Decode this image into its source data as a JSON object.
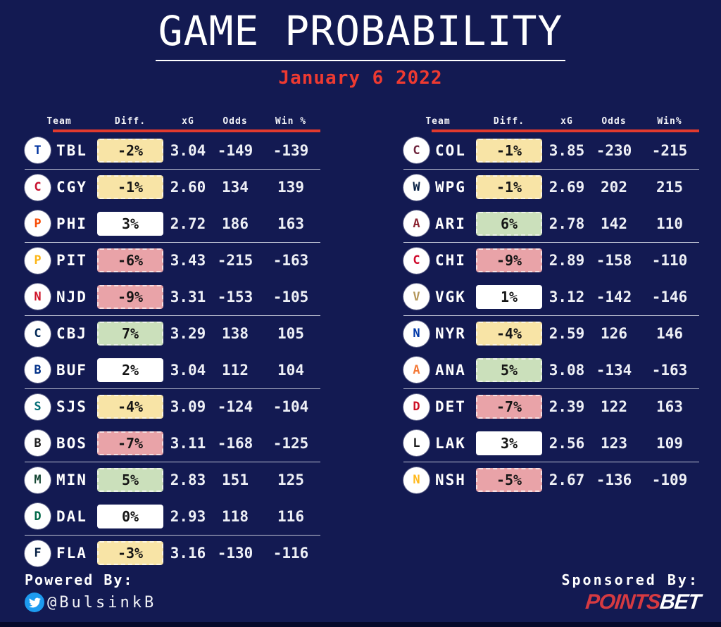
{
  "title": "GAME PROBABILITY",
  "subtitle_date": "January 6 2022",
  "colors": {
    "background": "#131a52",
    "accent_red": "#e23a2e",
    "subtitle_red": "#ee3a31",
    "badge_yellow": "#f8e4a6",
    "badge_green": "#cbe0bb",
    "badge_pink": "#e9a3a8",
    "badge_white": "#ffffff",
    "separator_gray": "#dee2eb",
    "twitter_blue": "#1d9bf0",
    "pointsbet_red": "#d63a41"
  },
  "chart_data": [
    {
      "type": "table",
      "title": "left-game-table",
      "columns": [
        "Team",
        "Diff.",
        "xG",
        "Odds",
        "Win %"
      ],
      "rows": [
        {
          "team": "TBL",
          "diff": "-2%",
          "diff_highlight": "yellow",
          "xg": "3.04",
          "odds": "-149",
          "win_pct": "-139",
          "logo_letter": "T",
          "logo_color": "#0033a0"
        },
        {
          "team": "CGY",
          "diff": "-1%",
          "diff_highlight": "yellow",
          "xg": "2.60",
          "odds": "134",
          "win_pct": "139",
          "logo_letter": "C",
          "logo_color": "#c8102e"
        },
        {
          "team": "PHI",
          "diff": "3%",
          "diff_highlight": "white",
          "xg": "2.72",
          "odds": "186",
          "win_pct": "163",
          "logo_letter": "P",
          "logo_color": "#f74902"
        },
        {
          "team": "PIT",
          "diff": "-6%",
          "diff_highlight": "pink",
          "xg": "3.43",
          "odds": "-215",
          "win_pct": "-163",
          "logo_letter": "P",
          "logo_color": "#fcb514"
        },
        {
          "team": "NJD",
          "diff": "-9%",
          "diff_highlight": "pink",
          "xg": "3.31",
          "odds": "-153",
          "win_pct": "-105",
          "logo_letter": "N",
          "logo_color": "#ce1126"
        },
        {
          "team": "CBJ",
          "diff": "7%",
          "diff_highlight": "green",
          "xg": "3.29",
          "odds": "138",
          "win_pct": "105",
          "logo_letter": "C",
          "logo_color": "#002654"
        },
        {
          "team": "BUF",
          "diff": "2%",
          "diff_highlight": "white",
          "xg": "3.04",
          "odds": "112",
          "win_pct": "104",
          "logo_letter": "B",
          "logo_color": "#003087"
        },
        {
          "team": "SJS",
          "diff": "-4%",
          "diff_highlight": "yellow",
          "xg": "3.09",
          "odds": "-124",
          "win_pct": "-104",
          "logo_letter": "S",
          "logo_color": "#006d75"
        },
        {
          "team": "BOS",
          "diff": "-7%",
          "diff_highlight": "pink",
          "xg": "3.11",
          "odds": "-168",
          "win_pct": "-125",
          "logo_letter": "B",
          "logo_color": "#1d1d1d"
        },
        {
          "team": "MIN",
          "diff": "5%",
          "diff_highlight": "green",
          "xg": "2.83",
          "odds": "151",
          "win_pct": "125",
          "logo_letter": "M",
          "logo_color": "#154734"
        },
        {
          "team": "DAL",
          "diff": "0%",
          "diff_highlight": "white",
          "xg": "2.93",
          "odds": "118",
          "win_pct": "116",
          "logo_letter": "D",
          "logo_color": "#006847"
        },
        {
          "team": "FLA",
          "diff": "-3%",
          "diff_highlight": "yellow",
          "xg": "3.16",
          "odds": "-130",
          "win_pct": "-116",
          "logo_letter": "F",
          "logo_color": "#041e42"
        }
      ]
    },
    {
      "type": "table",
      "title": "right-game-table",
      "columns": [
        "Team",
        "Diff.",
        "xG",
        "Odds",
        "Win%"
      ],
      "rows": [
        {
          "team": "COL",
          "diff": "-1%",
          "diff_highlight": "yellow",
          "xg": "3.85",
          "odds": "-230",
          "win_pct": "-215",
          "logo_letter": "C",
          "logo_color": "#6f263d"
        },
        {
          "team": "WPG",
          "diff": "-1%",
          "diff_highlight": "yellow",
          "xg": "2.69",
          "odds": "202",
          "win_pct": "215",
          "logo_letter": "W",
          "logo_color": "#041e42"
        },
        {
          "team": "ARI",
          "diff": "6%",
          "diff_highlight": "green",
          "xg": "2.78",
          "odds": "142",
          "win_pct": "110",
          "logo_letter": "A",
          "logo_color": "#8c2633"
        },
        {
          "team": "CHI",
          "diff": "-9%",
          "diff_highlight": "pink",
          "xg": "2.89",
          "odds": "-158",
          "win_pct": "-110",
          "logo_letter": "C",
          "logo_color": "#cf0a2c"
        },
        {
          "team": "VGK",
          "diff": "1%",
          "diff_highlight": "white",
          "xg": "3.12",
          "odds": "-142",
          "win_pct": "-146",
          "logo_letter": "V",
          "logo_color": "#b4975a"
        },
        {
          "team": "NYR",
          "diff": "-4%",
          "diff_highlight": "yellow",
          "xg": "2.59",
          "odds": "126",
          "win_pct": "146",
          "logo_letter": "N",
          "logo_color": "#0038a8"
        },
        {
          "team": "ANA",
          "diff": "5%",
          "diff_highlight": "green",
          "xg": "3.08",
          "odds": "-134",
          "win_pct": "-163",
          "logo_letter": "A",
          "logo_color": "#f47a38"
        },
        {
          "team": "DET",
          "diff": "-7%",
          "diff_highlight": "pink",
          "xg": "2.39",
          "odds": "122",
          "win_pct": "163",
          "logo_letter": "D",
          "logo_color": "#ce1126"
        },
        {
          "team": "LAK",
          "diff": "3%",
          "diff_highlight": "white",
          "xg": "2.56",
          "odds": "123",
          "win_pct": "109",
          "logo_letter": "L",
          "logo_color": "#1d1d1d"
        },
        {
          "team": "NSH",
          "diff": "-5%",
          "diff_highlight": "pink",
          "xg": "2.67",
          "odds": "-136",
          "win_pct": "-109",
          "logo_letter": "N",
          "logo_color": "#ffb81c"
        }
      ]
    }
  ],
  "footer": {
    "powered_by_label": "Powered By:",
    "twitter_icon": "twitter-bird-icon",
    "twitter_handle": "@BulsinkB",
    "sponsored_by_label": "Sponsored By:",
    "sponsor_name_part1": "POINTS",
    "sponsor_name_part2": "BET"
  }
}
